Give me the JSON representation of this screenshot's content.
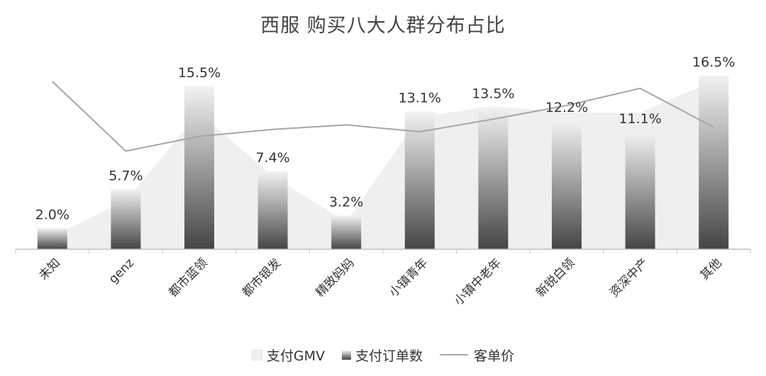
{
  "chart_data": {
    "type": "bar",
    "title": "西服 购买八大人群分布占比",
    "categories": [
      "未知",
      "genz",
      "都市蓝领",
      "都市银发",
      "精致妈妈",
      "小镇青年",
      "小镇中老年",
      "新锐白领",
      "资深中产",
      "其他"
    ],
    "series": [
      {
        "name": "支付GMV",
        "kind": "area",
        "values": [
          1.2,
          4.6,
          13.0,
          6.9,
          2.6,
          12.6,
          13.6,
          13.0,
          13.0,
          16.0
        ]
      },
      {
        "name": "支付订单数",
        "kind": "bar",
        "values": [
          2.0,
          5.7,
          15.5,
          7.4,
          3.2,
          13.1,
          13.5,
          12.2,
          11.1,
          16.5
        ],
        "labels": [
          "2.0%",
          "5.7%",
          "15.5%",
          "7.4%",
          "3.2%",
          "13.1%",
          "13.5%",
          "12.2%",
          "11.1%",
          "16.5%"
        ]
      },
      {
        "name": "客单价",
        "kind": "line",
        "values": [
          14.7,
          8.6,
          9.9,
          10.5,
          10.9,
          10.3,
          11.4,
          12.6,
          14.1,
          10.7
        ]
      }
    ],
    "ylim": [
      0,
      16.5
    ],
    "grid": false,
    "legend_position": "bottom",
    "colors": {
      "area": "#efefef",
      "bar_top": "#f2f2f2",
      "bar_bottom": "#454545",
      "line": "#a6a6a6",
      "axis": "#bfbfbf"
    }
  }
}
